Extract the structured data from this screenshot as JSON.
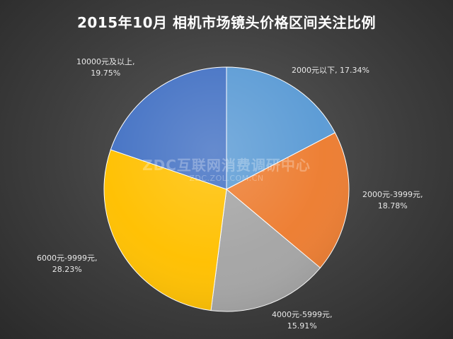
{
  "chart_data": {
    "type": "pie",
    "title": "2015年10月  相机市场镜头价格区间关注比例",
    "slices": [
      {
        "label": "2000元以下,",
        "value_text": "17.34%",
        "value": 17.34,
        "color": "#5b9bd5"
      },
      {
        "label": "2000元-3999元,",
        "value_text": "18.78%",
        "value": 18.78,
        "color": "#ed7d31"
      },
      {
        "label": "4000元-5999元,",
        "value_text": "15.91%",
        "value": 15.91,
        "color": "#a5a5a5"
      },
      {
        "label": "6000元-9999元,",
        "value_text": "28.23%",
        "value": 28.23,
        "color": "#ffc000"
      },
      {
        "label": "10000元及以上,",
        "value_text": "19.75%",
        "value": 19.75,
        "color": "#4472c4"
      }
    ]
  },
  "watermark": {
    "main": "ZDC互联网消费调研中心",
    "sub": "ZDC.ZOL.COM.CN"
  }
}
